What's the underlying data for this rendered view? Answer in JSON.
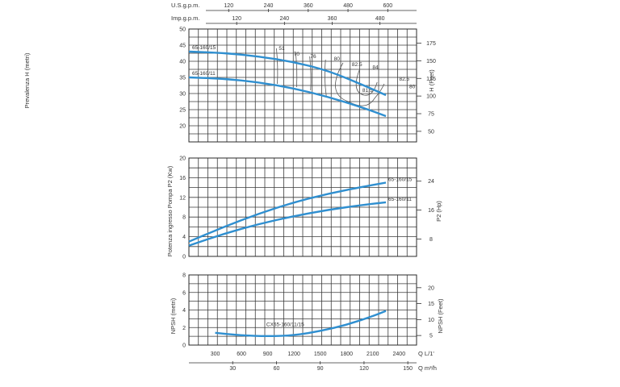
{
  "chart_data": [
    {
      "type": "line",
      "title": "",
      "ylabel": "Prevalenza H (metri)",
      "ylabel_right": "H (Feet)",
      "ylim": [
        15,
        50
      ],
      "yticks": [
        20,
        25,
        30,
        35,
        40,
        45,
        50
      ],
      "yticks_right": [
        50,
        75,
        100,
        125,
        150,
        175
      ],
      "top_axes": [
        {
          "label": "U.S.g.p.m.",
          "ticks": [
            "120",
            "240",
            "360",
            "480",
            "600"
          ],
          "values": [
            120,
            240,
            360,
            480,
            600
          ]
        },
        {
          "label": "Imp.g.p.m.",
          "ticks": [
            "120",
            "240",
            "360",
            "480"
          ],
          "values": [
            120,
            240,
            360,
            480
          ]
        }
      ],
      "series": [
        {
          "name": "65-160/15",
          "x": [
            0,
            400,
            800,
            1200,
            1600,
            2000,
            2250
          ],
          "y": [
            43,
            42.6,
            41.5,
            39.8,
            37,
            32.5,
            29.5
          ]
        },
        {
          "name": "65-160/11",
          "x": [
            0,
            400,
            800,
            1200,
            1600,
            2000,
            2250
          ],
          "y": [
            35,
            34.6,
            33.5,
            31.6,
            28.9,
            25.5,
            23
          ]
        }
      ],
      "efficiency_labels": [
        "51",
        "70",
        "76",
        "80",
        "82.5",
        "84",
        "82.5",
        "80",
        "81.5"
      ]
    },
    {
      "type": "line",
      "title": "",
      "ylabel": "Potenza ingresso Pompa P2 (Kw)",
      "ylabel_right": "P2 (Hp)",
      "ylim": [
        0,
        20
      ],
      "yticks": [
        0,
        4,
        8,
        12,
        16,
        20
      ],
      "yticks_right": [
        8,
        16,
        24
      ],
      "series": [
        {
          "name": "65-160/15",
          "x": [
            0,
            400,
            800,
            1200,
            1600,
            2000,
            2250
          ],
          "y": [
            3,
            6,
            8.7,
            11,
            12.8,
            14.2,
            15
          ]
        },
        {
          "name": "65-160/11",
          "x": [
            0,
            400,
            800,
            1200,
            1600,
            2000,
            2250
          ],
          "y": [
            2.2,
            4.6,
            6.6,
            8.2,
            9.5,
            10.5,
            11
          ]
        }
      ]
    },
    {
      "type": "line",
      "title": "",
      "ylabel": "NPSH (metri)",
      "ylabel_right": "NPSH (Feet)",
      "xlabel": "Q L/1'",
      "xlabel2": "Q m³/h",
      "ylim": [
        0,
        8
      ],
      "yticks": [
        0,
        2,
        4,
        6,
        8
      ],
      "yticks_right": [
        5,
        10,
        15,
        20
      ],
      "xticks": [
        "300",
        "600",
        "900",
        "1200",
        "1500",
        "1800",
        "2100",
        "2400"
      ],
      "xticks_values": [
        300,
        600,
        900,
        1200,
        1500,
        1800,
        2100,
        2400
      ],
      "xticks2": [
        "30",
        "60",
        "90",
        "120",
        "150"
      ],
      "xticks2_values": [
        30,
        60,
        90,
        120,
        150
      ],
      "series": [
        {
          "name": "CX65-160/11/15",
          "x": [
            300,
            600,
            900,
            1200,
            1500,
            1800,
            2100,
            2250
          ],
          "y": [
            1.4,
            1.1,
            1.0,
            1.1,
            1.6,
            2.3,
            3.3,
            3.9
          ]
        }
      ]
    }
  ]
}
